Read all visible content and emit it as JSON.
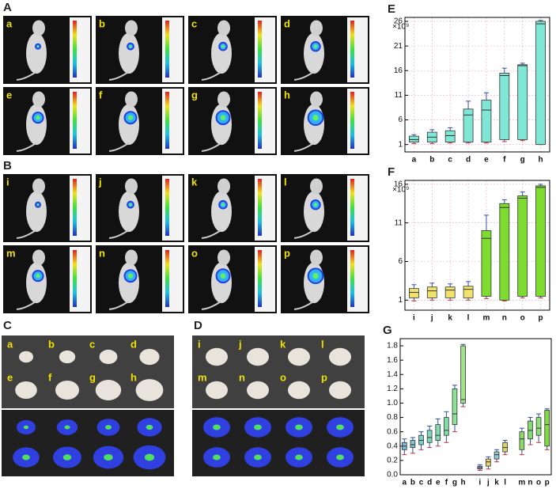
{
  "photo_panels": [
    {
      "panel": "A",
      "labels": [
        "a",
        "b",
        "c",
        "d",
        "e",
        "f",
        "g",
        "h"
      ]
    },
    {
      "panel": "B",
      "labels": [
        "i",
        "j",
        "k",
        "l",
        "m",
        "n",
        "o",
        "p"
      ]
    },
    {
      "panel": "C",
      "labels": [
        "a",
        "b",
        "c",
        "d",
        "e",
        "f",
        "g",
        "h"
      ]
    },
    {
      "panel": "D",
      "labels": [
        "i",
        "j",
        "k",
        "l",
        "m",
        "n",
        "o",
        "p"
      ]
    }
  ],
  "chart_data": [
    {
      "type": "box",
      "panel": "E",
      "y_multiplier": "×10⁹",
      "categories": [
        "a",
        "b",
        "c",
        "d",
        "e",
        "f",
        "g",
        "h"
      ],
      "colors": [
        "#80e6d6",
        "#80e6d6",
        "#80e6d6",
        "#80e6d6",
        "#80e6d6",
        "#80e6d6",
        "#80e6d6",
        "#80e6d6"
      ],
      "min": [
        1.2,
        1.2,
        1.3,
        1.3,
        1.3,
        1.6,
        1.8,
        1.0
      ],
      "q1": [
        1.5,
        1.5,
        1.5,
        1.5,
        1.5,
        2.0,
        2.0,
        1.0
      ],
      "median": [
        2.0,
        2.5,
        2.8,
        7.0,
        8.0,
        15.0,
        17.0,
        25.5
      ],
      "q3": [
        2.7,
        3.5,
        3.8,
        8.2,
        10.0,
        15.5,
        17.2,
        26.0
      ],
      "max": [
        3.0,
        4.0,
        4.4,
        9.8,
        11.5,
        16.5,
        17.5,
        26.2
      ],
      "ylim": [
        -0.5,
        26.8
      ],
      "yticks": [
        1,
        6,
        11,
        16,
        21,
        26
      ],
      "grid": true
    },
    {
      "type": "box",
      "panel": "F",
      "y_multiplier": "×10⁹",
      "categories": [
        "i",
        "j",
        "k",
        "l",
        "m",
        "n",
        "o",
        "p"
      ],
      "colors": [
        "#f0e26a",
        "#f0e26a",
        "#f0e26a",
        "#f0e26a",
        "#7edc30",
        "#7edc30",
        "#7edc30",
        "#7edc30"
      ],
      "min": [
        0.9,
        1.0,
        1.0,
        1.0,
        1.2,
        0.9,
        1.3,
        1.3
      ],
      "q1": [
        1.3,
        1.3,
        1.3,
        1.3,
        1.5,
        1.0,
        1.5,
        1.5
      ],
      "median": [
        2.0,
        2.2,
        2.3,
        2.4,
        9.0,
        13.0,
        14.2,
        15.6
      ],
      "q3": [
        2.5,
        2.7,
        2.7,
        2.8,
        10.0,
        13.5,
        14.5,
        15.8
      ],
      "max": [
        3.0,
        3.2,
        3.1,
        3.4,
        12.0,
        14.0,
        15.0,
        16.0
      ],
      "ylim": [
        -0.3,
        16.5
      ],
      "yticks": [
        1,
        6,
        11,
        16
      ],
      "grid": true
    },
    {
      "type": "box",
      "panel": "G",
      "categories": [
        "a",
        "b",
        "c",
        "d",
        "e",
        "f",
        "g",
        "h",
        null,
        "i",
        "j",
        "k",
        "l",
        null,
        "m",
        "n",
        "o",
        "p"
      ],
      "colors": [
        "#7fb8d8",
        "#7fc6d0",
        "#7fd0c8",
        "#7fd8bc",
        "#80dcb0",
        "#80e0a4",
        "#8ce296",
        "#a0e48a",
        null,
        "#9aa8e0",
        "#e6d26c",
        "#8fc8d8",
        "#d8d46c",
        null,
        "#8ed868",
        "#7edc70",
        "#8ee078",
        "#7edc40"
      ],
      "min": [
        0.28,
        0.3,
        0.35,
        0.38,
        0.4,
        0.45,
        0.6,
        0.95,
        null,
        0.06,
        0.08,
        0.18,
        0.28,
        null,
        0.28,
        0.42,
        0.45,
        0.35
      ],
      "q1": [
        0.35,
        0.38,
        0.42,
        0.45,
        0.48,
        0.55,
        0.7,
        1.0,
        null,
        0.08,
        0.12,
        0.22,
        0.32,
        null,
        0.35,
        0.5,
        0.55,
        0.4
      ],
      "median": [
        0.4,
        0.42,
        0.48,
        0.52,
        0.55,
        0.62,
        0.85,
        1.05,
        null,
        0.1,
        0.18,
        0.28,
        0.38,
        null,
        0.5,
        0.62,
        0.65,
        0.7
      ],
      "q3": [
        0.45,
        0.48,
        0.55,
        0.62,
        0.7,
        0.8,
        1.2,
        1.8,
        null,
        0.12,
        0.22,
        0.32,
        0.45,
        null,
        0.6,
        0.75,
        0.8,
        0.9
      ],
      "max": [
        0.5,
        0.52,
        0.6,
        0.68,
        0.78,
        0.88,
        1.25,
        1.82,
        null,
        0.14,
        0.25,
        0.35,
        0.48,
        null,
        0.65,
        0.8,
        0.85,
        0.92
      ],
      "ylim": [
        0,
        1.9
      ],
      "yticks": [
        {
          "value": 0,
          "label": "0.0"
        },
        0.2,
        0.4,
        0.6,
        0.8,
        {
          "value": 1,
          "label": "1.0"
        },
        1.2,
        1.4,
        1.6,
        1.8
      ],
      "grid": false
    }
  ]
}
